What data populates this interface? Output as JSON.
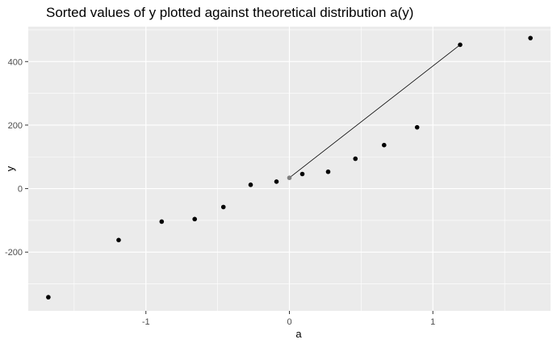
{
  "chart_data": {
    "type": "scatter",
    "title": "Sorted values of y plotted against theoretical distribution a(y)",
    "xlabel": "a",
    "ylabel": "y",
    "xlim": [
      -1.82,
      1.82
    ],
    "ylim": [
      -385,
      510
    ],
    "x_ticks": [
      -1,
      0,
      1
    ],
    "x_tick_labels": [
      "-1",
      "0",
      "1"
    ],
    "y_ticks": [
      -200,
      0,
      200,
      400
    ],
    "y_tick_labels": [
      "-200",
      "0",
      "200",
      "400"
    ],
    "grid": true,
    "points": [
      {
        "x": -1.68,
        "y": -342
      },
      {
        "x": -1.19,
        "y": -162
      },
      {
        "x": -0.89,
        "y": -104
      },
      {
        "x": -0.66,
        "y": -96
      },
      {
        "x": -0.46,
        "y": -58
      },
      {
        "x": -0.27,
        "y": 12
      },
      {
        "x": -0.09,
        "y": 22
      },
      {
        "x": 0.0,
        "y": 34
      },
      {
        "x": 0.09,
        "y": 46
      },
      {
        "x": 0.27,
        "y": 53
      },
      {
        "x": 0.46,
        "y": 94
      },
      {
        "x": 0.66,
        "y": 137
      },
      {
        "x": 0.89,
        "y": 193
      },
      {
        "x": 1.19,
        "y": 453
      },
      {
        "x": 1.68,
        "y": 474
      }
    ],
    "highlight_point": {
      "x": 0.0,
      "y": 34
    },
    "segment": {
      "x1": 0.0,
      "y1": 34,
      "x2": 1.19,
      "y2": 453
    },
    "colors": {
      "panel": "#ebebeb",
      "grid": "#ffffff",
      "point": "#000000",
      "highlight": "#808080",
      "segment": "#000000"
    }
  }
}
